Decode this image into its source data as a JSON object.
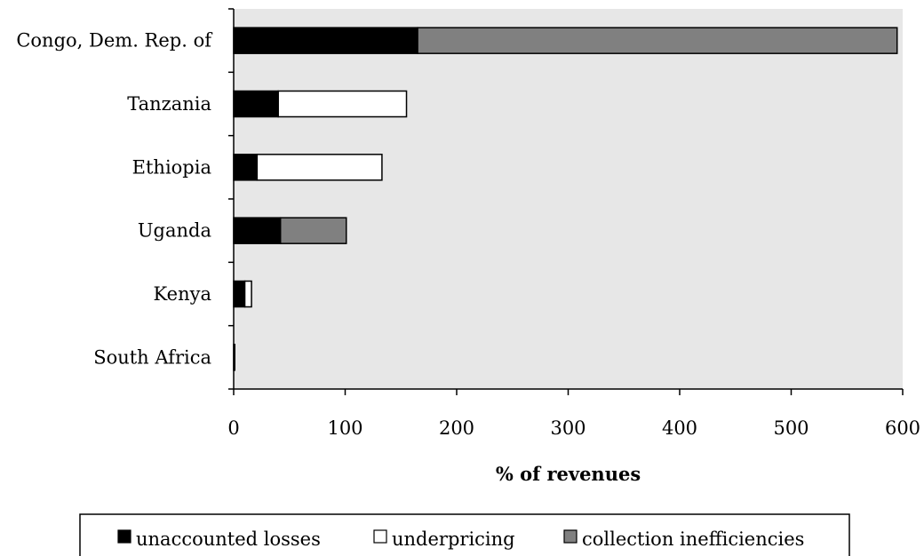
{
  "chart_data": {
    "type": "bar",
    "orientation": "horizontal",
    "stacked": true,
    "categories": [
      "Congo, Dem. Rep. of",
      "Tanzania",
      "Ethiopia",
      "Uganda",
      "Kenya",
      "South Africa"
    ],
    "series": [
      {
        "name": "unaccounted losses",
        "values": [
          165,
          40,
          21,
          42,
          10,
          1
        ],
        "color": "#000000"
      },
      {
        "name": "underpricing",
        "values": [
          0,
          115,
          112,
          0,
          6,
          0
        ],
        "color": "#ffffff"
      },
      {
        "name": "collection inefficiencies",
        "values": [
          430,
          0,
          0,
          59,
          0,
          0
        ],
        "color": "#808080"
      }
    ],
    "title": "",
    "xlabel": "% of revenues",
    "ylabel": "",
    "xlim": [
      0,
      600
    ],
    "xticks": [
      "0",
      "100",
      "200",
      "300",
      "400",
      "500",
      "600"
    ],
    "plot_background": "#e7e7e7",
    "grid": false,
    "legend_position": "bottom"
  }
}
